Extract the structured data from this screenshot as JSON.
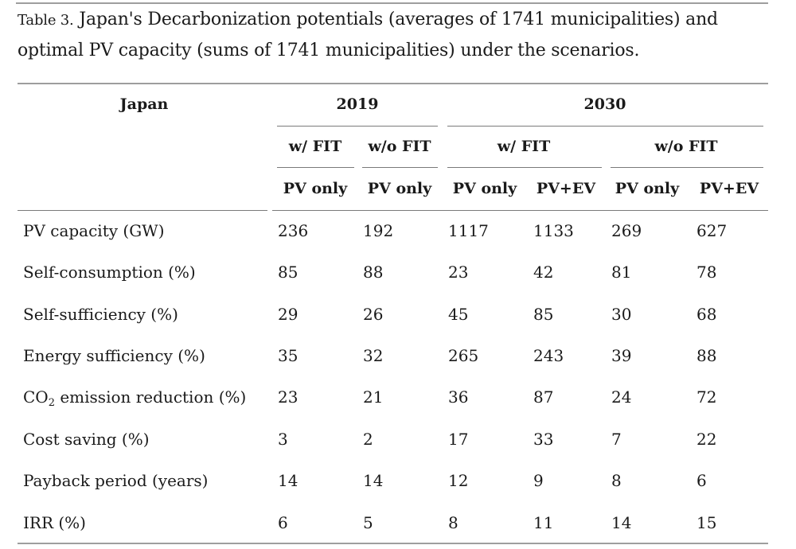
{
  "caption": {
    "label": "Table 3.",
    "text": " Japan's Decarbonization potentials (averages of 1741 municipalities) and optimal PV capacity (sums of 1741 municipalities) under the scenarios."
  },
  "header": {
    "corner": "Japan",
    "years": [
      "2019",
      "2030"
    ],
    "fit": [
      "w/ FIT",
      "w/o FIT",
      "w/ FIT",
      "w/o FIT"
    ],
    "config": [
      "PV only",
      "PV only",
      "PV only",
      "PV+EV",
      "PV only",
      "PV+EV"
    ]
  },
  "rows": [
    {
      "label": "PV capacity (GW)",
      "values": [
        "236",
        "192",
        "1117",
        "1133",
        "269",
        "627"
      ]
    },
    {
      "label": "Self-consumption (%)",
      "values": [
        "85",
        "88",
        "23",
        "42",
        "81",
        "78"
      ]
    },
    {
      "label": "Self-sufficiency (%)",
      "values": [
        "29",
        "26",
        "45",
        "85",
        "30",
        "68"
      ]
    },
    {
      "label": "Energy sufficiency (%)",
      "values": [
        "35",
        "32",
        "265",
        "243",
        "39",
        "88"
      ]
    },
    {
      "label_pre": "CO",
      "label_sub": "2",
      "label_post": " emission reduction (%)",
      "values": [
        "23",
        "21",
        "36",
        "87",
        "24",
        "72"
      ]
    },
    {
      "label": "Cost saving (%)",
      "values": [
        "3",
        "2",
        "17",
        "33",
        "7",
        "22"
      ]
    },
    {
      "label": "Payback period (years)",
      "values": [
        "14",
        "14",
        "12",
        "9",
        "8",
        "6"
      ]
    },
    {
      "label": "IRR (%)",
      "values": [
        "6",
        "5",
        "8",
        "11",
        "14",
        "15"
      ]
    }
  ]
}
